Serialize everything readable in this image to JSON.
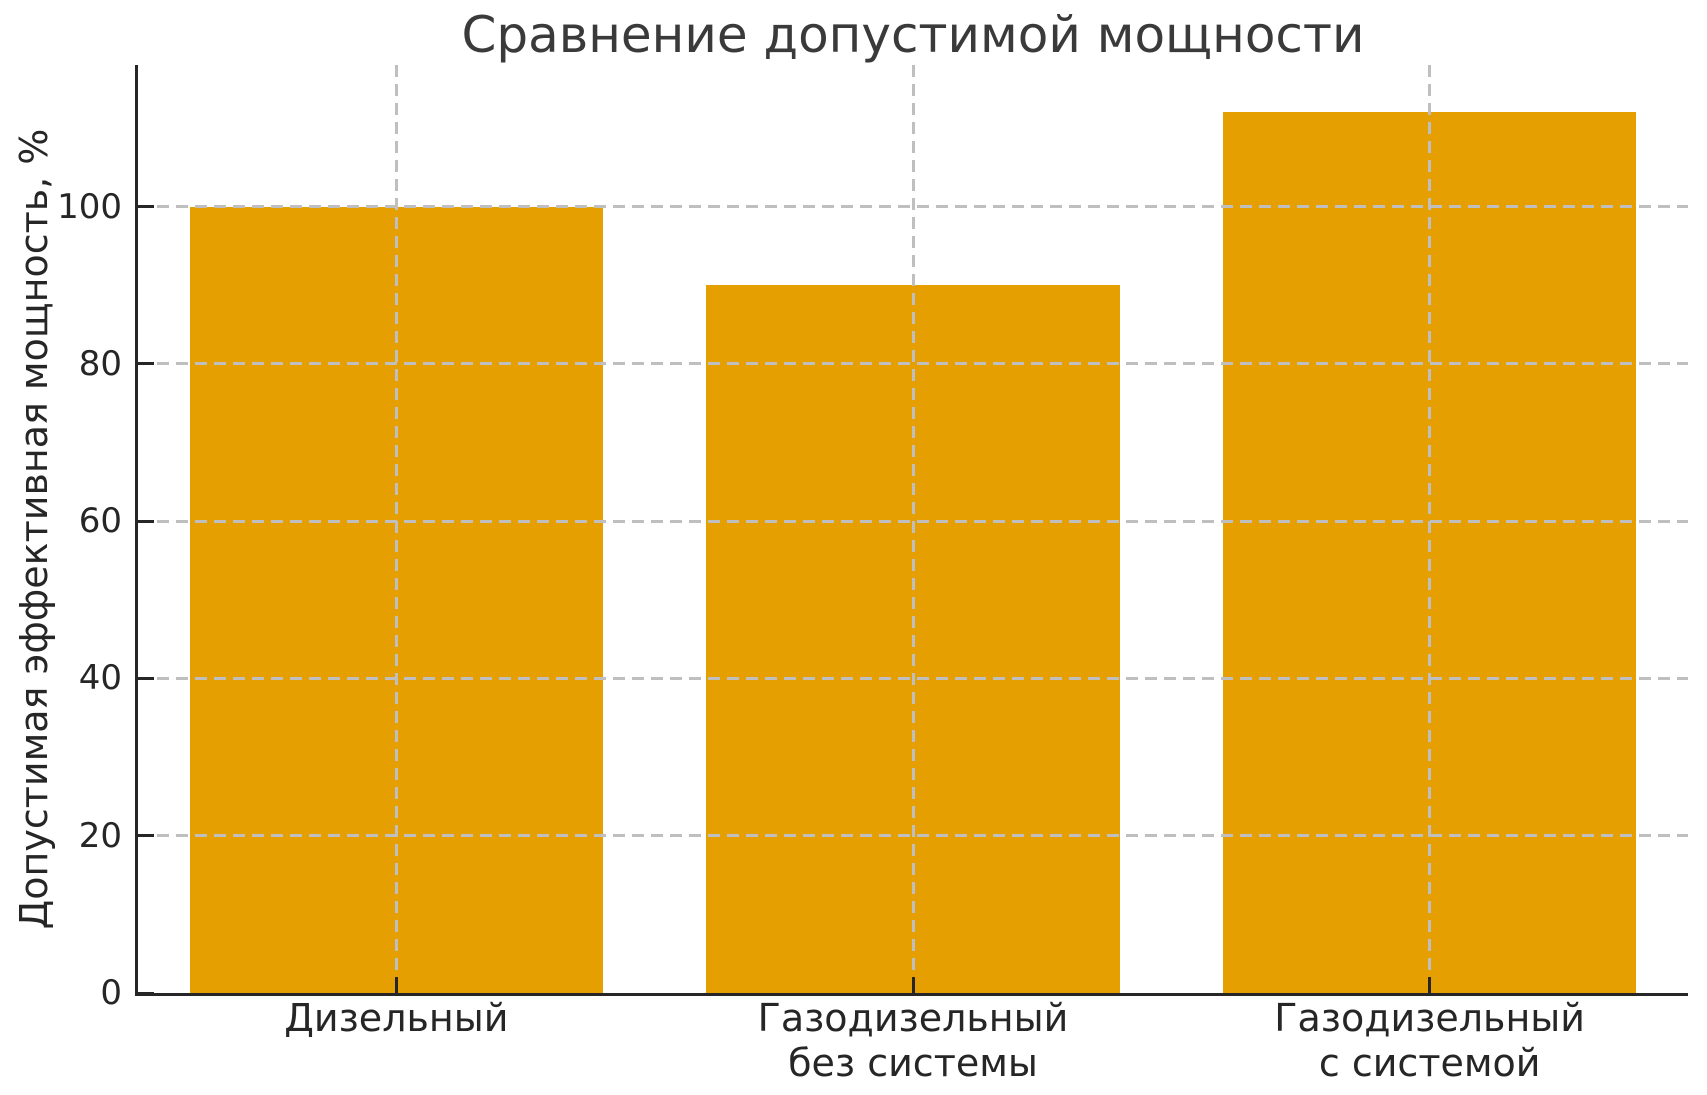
{
  "chart_data": {
    "type": "bar",
    "title": "Сравнение допустимой мощности",
    "xlabel": "",
    "ylabel": "Допустимая эффективная мощность, %",
    "categories": [
      "Дизельный",
      "Газодизельный\nбез системы",
      "Газодизельный\nс системой"
    ],
    "values": [
      100,
      90,
      112
    ],
    "yticks": [
      0,
      20,
      40,
      60,
      80,
      100
    ],
    "ylim": [
      0,
      118
    ],
    "bar_width_fraction": 0.8,
    "grid": {
      "style": "dashed",
      "horizontal": true,
      "vertical": true,
      "drawn_over_bars": true
    },
    "legend": "none",
    "colors": {
      "bar": "#E69F00",
      "grid": "#bfbfbf",
      "spine": "#262626",
      "text": "#262626",
      "title": "#3a3a3a",
      "background": "#ffffff"
    }
  }
}
